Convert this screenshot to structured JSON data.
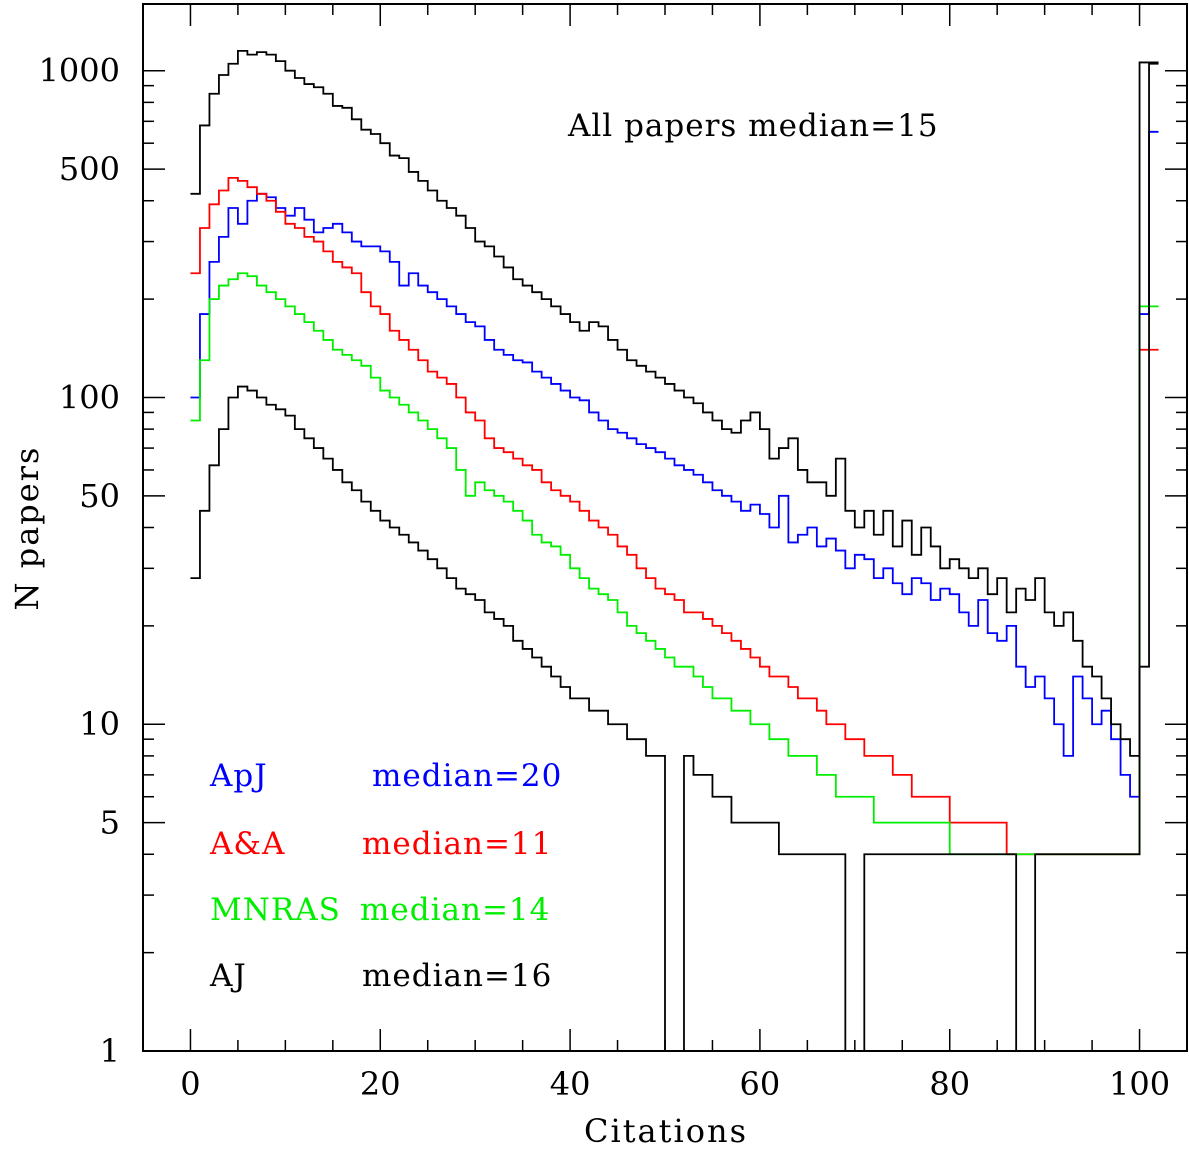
{
  "chart_data": {
    "type": "line",
    "step": true,
    "xlabel": "Citations",
    "ylabel": "N papers",
    "xlim": [
      -5,
      105
    ],
    "ylim": [
      1,
      1600
    ],
    "yscale": "log",
    "xticks": [
      0,
      20,
      40,
      60,
      80,
      100
    ],
    "yticks": [
      1,
      5,
      10,
      50,
      100,
      500,
      1000
    ],
    "grid": false,
    "annotation": "All papers median=15",
    "legend": [
      {
        "name": "ApJ",
        "median_text": "median=20",
        "color": "#0000ff"
      },
      {
        "name": "A&A",
        "median_text": "median=11",
        "color": "#ff0000"
      },
      {
        "name": "MNRAS",
        "median_text": "median=14",
        "color": "#00ee00"
      },
      {
        "name": "AJ",
        "median_text": "median=16",
        "color": "#000000"
      }
    ],
    "series": [
      {
        "name": "All papers",
        "color": "#000000",
        "values": [
          420,
          680,
          850,
          970,
          1050,
          1150,
          1120,
          1140,
          1120,
          1070,
          1000,
          950,
          910,
          890,
          850,
          780,
          770,
          710,
          660,
          640,
          600,
          550,
          540,
          490,
          460,
          430,
          400,
          380,
          360,
          330,
          300,
          290,
          270,
          250,
          230,
          220,
          210,
          200,
          190,
          180,
          170,
          160,
          170,
          165,
          150,
          140,
          130,
          125,
          120,
          115,
          110,
          105,
          100,
          96,
          90,
          85,
          80,
          78,
          85,
          90,
          80,
          65,
          70,
          75,
          60,
          55,
          55,
          50,
          65,
          45,
          40,
          45,
          38,
          45,
          35,
          42,
          33,
          40,
          35,
          30,
          32,
          30,
          28,
          30,
          25,
          28,
          22,
          26,
          24,
          28,
          22,
          20,
          22,
          18,
          15,
          14,
          12,
          10,
          9,
          8,
          15,
          1050
        ]
      },
      {
        "name": "ApJ",
        "color": "#0000ff",
        "values": [
          100,
          180,
          260,
          310,
          380,
          340,
          400,
          420,
          410,
          380,
          360,
          380,
          350,
          320,
          330,
          340,
          320,
          300,
          290,
          290,
          280,
          260,
          220,
          240,
          220,
          210,
          200,
          190,
          180,
          170,
          165,
          150,
          140,
          135,
          130,
          128,
          120,
          115,
          110,
          105,
          100,
          98,
          90,
          85,
          80,
          78,
          75,
          72,
          70,
          68,
          65,
          62,
          60,
          58,
          55,
          52,
          50,
          48,
          45,
          47,
          44,
          40,
          50,
          36,
          38,
          40,
          35,
          37,
          34,
          30,
          33,
          32,
          28,
          30,
          27,
          25,
          28,
          27,
          24,
          26,
          25,
          22,
          20,
          24,
          19,
          18,
          20,
          15,
          13,
          14,
          12,
          10,
          8,
          14,
          12,
          10,
          11,
          9,
          7,
          6,
          180,
          650
        ]
      },
      {
        "name": "A&A",
        "color": "#ff0000",
        "values": [
          240,
          330,
          390,
          430,
          470,
          460,
          440,
          420,
          400,
          370,
          340,
          330,
          310,
          300,
          280,
          260,
          250,
          240,
          210,
          190,
          180,
          160,
          150,
          140,
          130,
          120,
          115,
          110,
          100,
          90,
          85,
          75,
          70,
          68,
          65,
          62,
          60,
          55,
          52,
          50,
          48,
          45,
          42,
          40,
          38,
          35,
          33,
          30,
          28,
          26,
          25,
          24,
          22,
          22,
          21,
          20,
          19,
          18,
          17,
          16,
          15,
          14,
          14,
          13,
          12,
          12,
          11,
          10,
          10,
          9,
          9,
          8,
          8,
          8,
          7,
          7,
          6,
          6,
          6,
          6,
          5,
          5,
          5,
          5,
          5,
          5,
          4,
          4,
          4,
          4,
          4,
          4,
          4,
          4,
          4,
          4,
          4,
          4,
          4,
          4,
          140,
          140
        ]
      },
      {
        "name": "MNRAS",
        "color": "#00ee00",
        "values": [
          85,
          130,
          200,
          220,
          230,
          240,
          235,
          220,
          210,
          200,
          190,
          180,
          170,
          160,
          150,
          140,
          135,
          130,
          125,
          115,
          105,
          100,
          95,
          90,
          85,
          80,
          75,
          70,
          60,
          50,
          55,
          52,
          50,
          48,
          45,
          42,
          38,
          36,
          35,
          33,
          30,
          28,
          26,
          25,
          24,
          22,
          20,
          19,
          18,
          17,
          16,
          15,
          15,
          14,
          13,
          12,
          12,
          11,
          11,
          10,
          10,
          9,
          9,
          8,
          8,
          8,
          7,
          7,
          6,
          6,
          6,
          6,
          5,
          5,
          5,
          5,
          5,
          5,
          5,
          5,
          4,
          4,
          4,
          4,
          4,
          4,
          4,
          4,
          4,
          4,
          4,
          4,
          4,
          4,
          4,
          4,
          4,
          4,
          4,
          4,
          190,
          190
        ]
      },
      {
        "name": "AJ",
        "color": "#000000",
        "values": [
          28,
          45,
          62,
          80,
          100,
          108,
          105,
          100,
          95,
          92,
          88,
          80,
          75,
          70,
          65,
          60,
          55,
          52,
          48,
          45,
          42,
          40,
          38,
          36,
          34,
          32,
          30,
          28,
          26,
          25,
          24,
          22,
          21,
          20,
          18,
          17,
          16,
          15,
          14,
          13,
          12,
          12,
          11,
          11,
          10,
          10,
          9,
          9,
          8,
          8,
          1,
          1,
          8,
          7,
          7,
          6,
          6,
          5,
          5,
          5,
          5,
          5,
          4,
          4,
          4,
          4,
          4,
          4,
          4,
          1,
          1,
          4,
          4,
          4,
          4,
          4,
          4,
          4,
          4,
          4,
          4,
          4,
          4,
          4,
          4,
          4,
          4,
          1,
          1,
          4,
          4,
          4,
          4,
          4,
          4,
          4,
          4,
          4,
          4,
          4,
          1060,
          1060
        ]
      }
    ]
  }
}
